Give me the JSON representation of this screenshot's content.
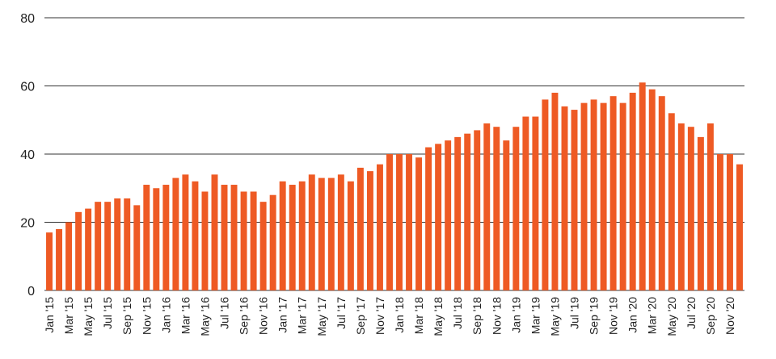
{
  "chart_data": {
    "type": "bar",
    "title": "",
    "xlabel": "",
    "ylabel": "",
    "ylim": [
      0,
      80
    ],
    "yticks": [
      0,
      20,
      40,
      60,
      80
    ],
    "grid": true,
    "legend": "none",
    "bar_color": "#EE5A24",
    "categories": [
      "Jan '15",
      "Feb '15",
      "Mar '15",
      "Apr '15",
      "May '15",
      "Jun '15",
      "Jul '15",
      "Aug '15",
      "Sep '15",
      "Oct '15",
      "Nov '15",
      "Dec '15",
      "Jan '16",
      "Feb '16",
      "Mar '16",
      "Apr '16",
      "May '16",
      "Jun '16",
      "Jul '16",
      "Aug '16",
      "Sep '16",
      "Oct '16",
      "Nov '16",
      "Dec '16",
      "Jan '17",
      "Feb '17",
      "Mar '17",
      "Apr '17",
      "May '17",
      "Jun '17",
      "Jul '17",
      "Aug '17",
      "Sep '17",
      "Oct '17",
      "Nov '17",
      "Dec '17",
      "Jan '18",
      "Feb '18",
      "Mar '18",
      "Apr '18",
      "May '18",
      "Jun '18",
      "Jul '18",
      "Aug '18",
      "Sep '18",
      "Oct '18",
      "Nov '18",
      "Dec '18",
      "Jan '19",
      "Feb '19",
      "Mar '19",
      "Apr '19",
      "May '19",
      "Jun '19",
      "Jul '19",
      "Aug '19",
      "Sep '19",
      "Oct '19",
      "Nov '19",
      "Dec '19",
      "Jan '20",
      "Feb '20",
      "Mar '20",
      "Apr '20",
      "May '20",
      "Jun '20",
      "Jul '20",
      "Aug '20",
      "Sep '20",
      "Oct '20",
      "Nov '20",
      "Dec '20"
    ],
    "xtick_labels": [
      "Jan '15",
      "Mar '15",
      "May '15",
      "Jul '15",
      "Sep '15",
      "Nov '15",
      "Jan '16",
      "Mar '16",
      "May '16",
      "Jul '16",
      "Sep '16",
      "Nov '16",
      "Jan '17",
      "Mar '17",
      "May '17",
      "Jul '17",
      "Sep '17",
      "Nov '17",
      "Jan '18",
      "Mar '18",
      "May '18",
      "Jul '18",
      "Sep '18",
      "Nov '18",
      "Jan '19",
      "Mar '19",
      "May '19",
      "Jul '19",
      "Sep '19",
      "Nov '19",
      "Jan '20",
      "Mar '20",
      "May '20",
      "Jul '20",
      "Sep '20",
      "Nov '20"
    ],
    "values": [
      17,
      18,
      20,
      23,
      24,
      26,
      26,
      27,
      27,
      25,
      31,
      30,
      31,
      33,
      34,
      32,
      29,
      34,
      31,
      31,
      29,
      29,
      26,
      28,
      32,
      31,
      32,
      34,
      33,
      33,
      34,
      32,
      36,
      35,
      37,
      40,
      40,
      40,
      39,
      42,
      43,
      44,
      45,
      46,
      47,
      49,
      48,
      44,
      48,
      51,
      51,
      56,
      58,
      54,
      53,
      55,
      56,
      55,
      57,
      55,
      58,
      61,
      59,
      57,
      52,
      49,
      48,
      45,
      49,
      40,
      40,
      37
    ]
  }
}
